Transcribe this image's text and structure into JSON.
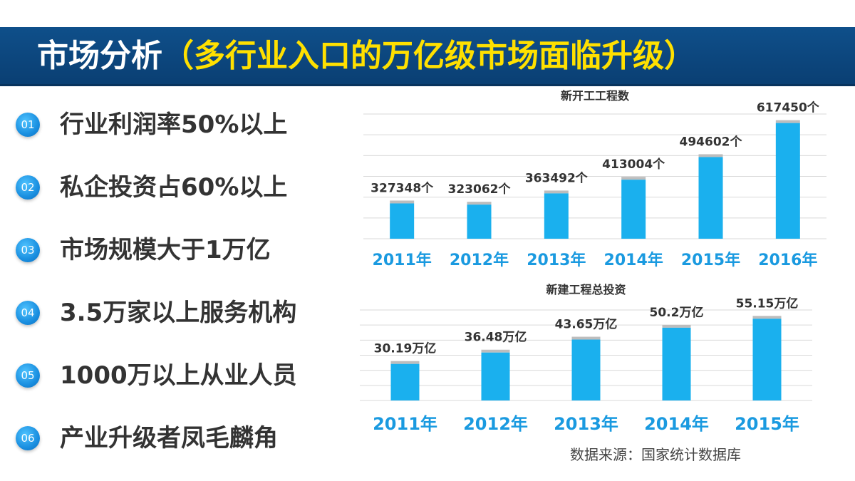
{
  "header": {
    "title_main": "市场分析",
    "title_sub": "（多行业入口的万亿级市场面临升级）"
  },
  "points": [
    {
      "num": "01",
      "label": "行业利润率50%以上"
    },
    {
      "num": "02",
      "label": "私企投资占60%以上"
    },
    {
      "num": "03",
      "label": "市场规模大于1万亿"
    },
    {
      "num": "04",
      "label": "3.5万家以上服务机构"
    },
    {
      "num": "05",
      "label": "1000万以上从业人员"
    },
    {
      "num": "06",
      "label": "产业升级者凤毛麟角"
    }
  ],
  "colors": {
    "bar": "#1ab0ee",
    "axis_label": "#1a9ae0",
    "banner": "#0d4a85",
    "subtitle": "#ffe000"
  },
  "chart_data": [
    {
      "type": "bar",
      "title": "新开工工程数",
      "categories": [
        "2011年",
        "2012年",
        "2013年",
        "2014年",
        "2015年",
        "2016年"
      ],
      "values": [
        327348,
        323062,
        363492,
        413004,
        494602,
        617450
      ],
      "data_labels": [
        "327348个",
        "323062个",
        "363492个",
        "413004个",
        "494602个",
        "617450个"
      ],
      "ylim": [
        200000,
        650000
      ],
      "grid": true
    },
    {
      "type": "bar",
      "title": "新建工程总投资",
      "categories": [
        "2011年",
        "2012年",
        "2013年",
        "2014年",
        "2015年"
      ],
      "values": [
        30.19,
        36.48,
        43.65,
        50.2,
        55.15
      ],
      "data_labels": [
        "30.19万亿",
        "36.48万亿",
        "43.65万亿",
        "50.2万亿",
        "55.15万亿"
      ],
      "ylim": [
        10,
        60
      ],
      "grid": true
    }
  ],
  "source": "数据来源：国家统计数据库"
}
